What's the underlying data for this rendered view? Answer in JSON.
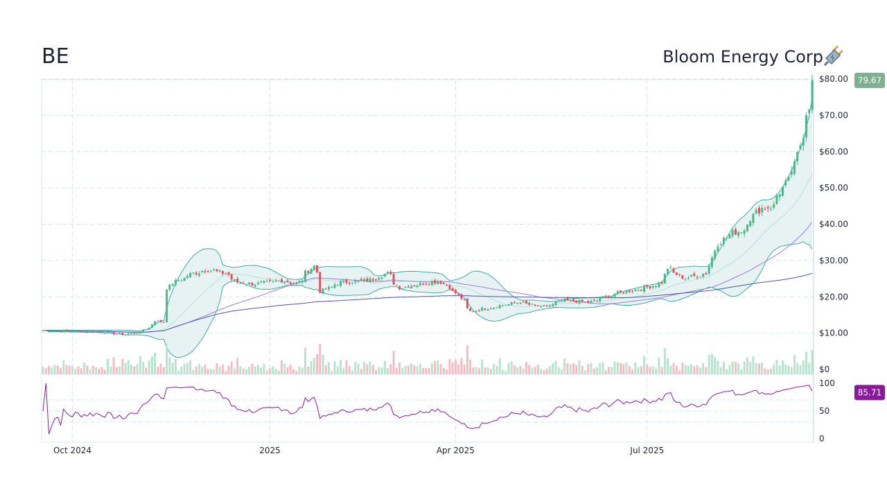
{
  "header": {
    "ticker": "BE",
    "company": "Bloom Energy Corp",
    "logo_icon": "electric-plug-icon"
  },
  "chart_data": {
    "type": "candlestick",
    "title": "BE",
    "x_range": [
      "2024-09-17",
      "2025-09-17"
    ],
    "x_ticks": [
      {
        "date": "2024-10-01",
        "label": "Oct 2024"
      },
      {
        "date": "2025-01-02",
        "label": "2025"
      },
      {
        "date": "2025-04-01",
        "label": "Apr 2025"
      },
      {
        "date": "2025-07-01",
        "label": "Jul 2025"
      }
    ],
    "price_axis": {
      "ylim": [
        0,
        80
      ],
      "ticks": [
        "$0",
        "$10.00",
        "$20.00",
        "$30.00",
        "$40.00",
        "$50.00",
        "$60.00",
        "$70.00",
        "$80.00"
      ]
    },
    "last_price_label": "79.67",
    "approx_closes": [
      [
        "2024-09-17",
        10.7
      ],
      [
        "2024-10-01",
        10.5
      ],
      [
        "2024-10-15",
        10.3
      ],
      [
        "2024-10-25",
        9.6
      ],
      [
        "2024-11-01",
        10.2
      ],
      [
        "2024-11-06",
        11.5
      ],
      [
        "2024-11-08",
        13.5
      ],
      [
        "2024-11-13",
        13.0
      ],
      [
        "2024-11-14",
        22.5
      ],
      [
        "2024-11-20",
        24.5
      ],
      [
        "2024-11-27",
        26.5
      ],
      [
        "2024-12-04",
        27.5
      ],
      [
        "2024-12-12",
        26.5
      ],
      [
        "2024-12-18",
        24.0
      ],
      [
        "2024-12-27",
        23.5
      ],
      [
        "2025-01-08",
        24.5
      ],
      [
        "2025-01-15",
        23.5
      ],
      [
        "2025-01-23",
        28.5
      ],
      [
        "2025-01-27",
        21.5
      ],
      [
        "2025-02-05",
        24.0
      ],
      [
        "2025-02-18",
        24.5
      ],
      [
        "2025-02-27",
        26.5
      ],
      [
        "2025-03-05",
        22.5
      ],
      [
        "2025-03-14",
        23.5
      ],
      [
        "2025-03-24",
        24.5
      ],
      [
        "2025-04-01",
        21.0
      ],
      [
        "2025-04-08",
        16.0
      ],
      [
        "2025-04-21",
        17.5
      ],
      [
        "2025-05-01",
        18.5
      ],
      [
        "2025-05-12",
        17.0
      ],
      [
        "2025-05-22",
        19.0
      ],
      [
        "2025-06-03",
        18.5
      ],
      [
        "2025-06-17",
        21.0
      ],
      [
        "2025-06-30",
        22.5
      ],
      [
        "2025-07-08",
        24.0
      ],
      [
        "2025-07-10",
        28.0
      ],
      [
        "2025-07-18",
        25.0
      ],
      [
        "2025-07-29",
        26.5
      ],
      [
        "2025-08-01",
        33.0
      ],
      [
        "2025-08-08",
        37.0
      ],
      [
        "2025-08-15",
        38.5
      ],
      [
        "2025-08-22",
        44.0
      ],
      [
        "2025-08-29",
        45.0
      ],
      [
        "2025-09-05",
        52.0
      ],
      [
        "2025-09-09",
        56.0
      ],
      [
        "2025-09-12",
        65.0
      ],
      [
        "2025-09-16",
        73.0
      ],
      [
        "2025-09-17",
        79.67
      ]
    ],
    "overlays": [
      "bollinger-bands-20",
      "sma-50",
      "sma-200"
    ],
    "volume": true,
    "rsi": {
      "ylim": [
        0,
        100
      ],
      "ticks": [
        "0",
        "50",
        "100"
      ],
      "last_label": "85.71"
    },
    "grid": true,
    "colors": {
      "up": "#4cb88a",
      "down": "#e0505f",
      "bollinger": "#26a69a",
      "bollinger_fill": "#e6f3f2",
      "sma50": "#9e7be0",
      "sma200": "#4a53b5",
      "rsi": "#8b1a9b",
      "price_tag": "#7fb08f"
    }
  }
}
